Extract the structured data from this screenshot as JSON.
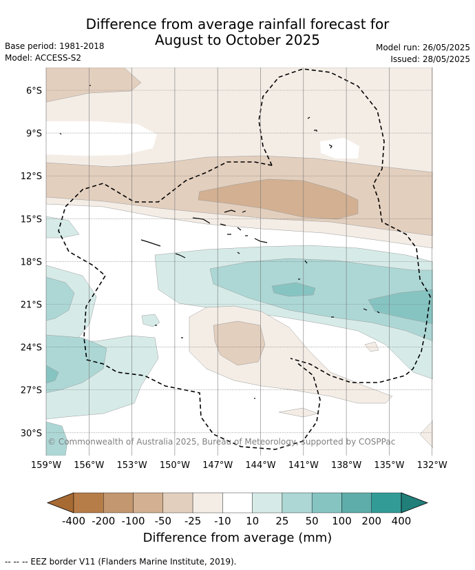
{
  "title": {
    "line1": "Difference from average rainfall forecast for",
    "line2": "August to October 2025"
  },
  "meta_left": {
    "base_period": "Base period: 1981-2018",
    "model": "Model: ACCESS-S2"
  },
  "meta_right": {
    "model_run": "Model run: 26/05/2025",
    "issued": "Issued: 28/05/2025"
  },
  "map": {
    "lat_labels": [
      "6°S",
      "9°S",
      "12°S",
      "15°S",
      "18°S",
      "21°S",
      "24°S",
      "27°S",
      "30°S"
    ],
    "lon_labels": [
      "159°W",
      "156°W",
      "153°W",
      "150°W",
      "147°W",
      "144°W",
      "141°W",
      "138°W",
      "135°W",
      "132°W"
    ],
    "copyright": "© Commonwealth of Australia 2025, Bureau of Meteorology, supported by COSPPac",
    "colors": {
      "dry_50_100": "#d2b091",
      "dry_25_50": "#e3cfbe",
      "dry_10_25": "#f4ede6",
      "wet_10_25": "#d6ebe8",
      "wet_25_50": "#acd7d5",
      "wet_50_100": "#86c4c2"
    }
  },
  "colorbar": {
    "ticks": [
      "-400",
      "-200",
      "-100",
      "-50",
      "-25",
      "-10",
      "10",
      "25",
      "50",
      "100",
      "200",
      "400"
    ],
    "colors": [
      "#a76a33",
      "#b67d48",
      "#c3976f",
      "#d2b091",
      "#e3cfbe",
      "#f4ede6",
      "#ffffff",
      "#d6ebe8",
      "#acd7d5",
      "#86c4c2",
      "#5eadaa",
      "#339b96",
      "#217f7a"
    ],
    "label": "Difference from average (mm)"
  },
  "footnote": "--  --  -- EEZ border V11 (Flanders Marine Institute, 2019)."
}
